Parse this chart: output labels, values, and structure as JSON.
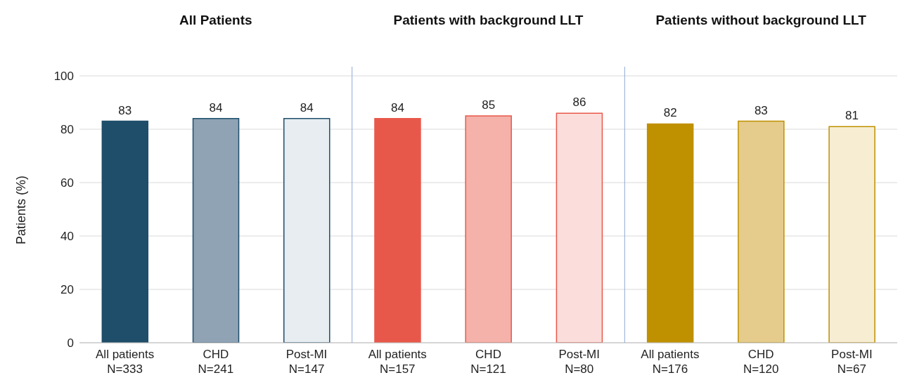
{
  "chart_data": {
    "type": "bar",
    "annotations": [
      "All Patients",
      "Patients with background LLT",
      "Patients without background LLT"
    ],
    "ylabel": "Patients  (%)",
    "categories": [
      "All patients\nN=333",
      "CHD\nN=241",
      "Post-MI\nN=147",
      "All patients\nN=157",
      "CHD\nN=121",
      "Post-MI\nN=80",
      "All patients\nN=176",
      "CHD\nN=120",
      "Post-MI\nN=67"
    ],
    "values": [
      83,
      84,
      84,
      84,
      85,
      86,
      82,
      83,
      81
    ],
    "colors": [
      "#1f4e6b",
      "#8fa3b5",
      "#e8edf2",
      "#e8584a",
      "#f4b2ab",
      "#fbdedb",
      "#bf9000",
      "#e5cc8c",
      "#f6edd2"
    ],
    "ylim": [
      0,
      100
    ],
    "yticks": [
      0,
      20,
      40,
      60,
      80,
      100
    ],
    "grid": "y",
    "data_labels": true
  }
}
